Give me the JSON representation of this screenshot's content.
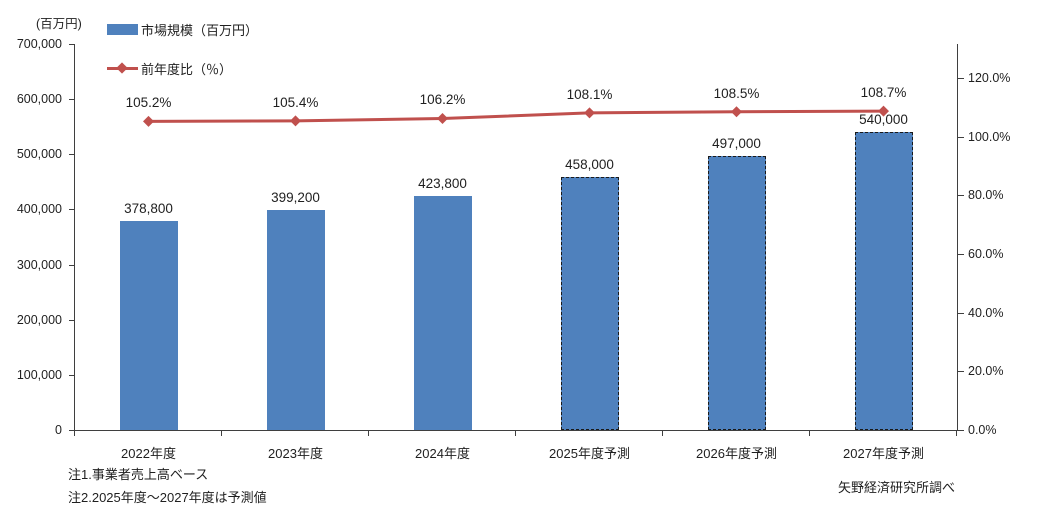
{
  "notes": [
    "注1.事業者売上高ベース",
    "注2.2025年度～2027年度は予測値"
  ],
  "source": "矢野経済研究所調べ",
  "chart_data": {
    "type": "bar+line",
    "title": "",
    "categories": [
      "2022年度",
      "2023年度",
      "2024年度",
      "2025年度予測",
      "2026年度予測",
      "2027年度予測"
    ],
    "series": [
      {
        "name": "市場規模（百万円）",
        "type": "bar",
        "axis": "left",
        "color": "#4f81bd",
        "values": [
          378800,
          399200,
          423800,
          458000,
          497000,
          540000
        ],
        "labels": [
          "378,800",
          "399,200",
          "423,800",
          "458,000",
          "497,000",
          "540,000"
        ],
        "forecast": [
          false,
          false,
          false,
          true,
          true,
          true
        ]
      },
      {
        "name": "前年度比（％）",
        "type": "line",
        "axis": "right",
        "color": "#c0504d",
        "values": [
          105.2,
          105.4,
          106.2,
          108.1,
          108.5,
          108.7
        ],
        "labels": [
          "105.2%",
          "105.4%",
          "106.2%",
          "108.1%",
          "108.5%",
          "108.7%"
        ]
      }
    ],
    "left_axis": {
      "unit": "(百万円)",
      "min": 0,
      "max": 700000,
      "tick_step": 100000,
      "ticks": [
        "0",
        "100,000",
        "200,000",
        "300,000",
        "400,000",
        "500,000",
        "600,000",
        "700,000"
      ]
    },
    "right_axis": {
      "min": 0,
      "max": 120,
      "tick_step": 20,
      "ticks": [
        "0.0%",
        "20.0%",
        "40.0%",
        "60.0%",
        "80.0%",
        "100.0%",
        "120.0%"
      ]
    },
    "legend_position": "top-left",
    "grid": false
  }
}
